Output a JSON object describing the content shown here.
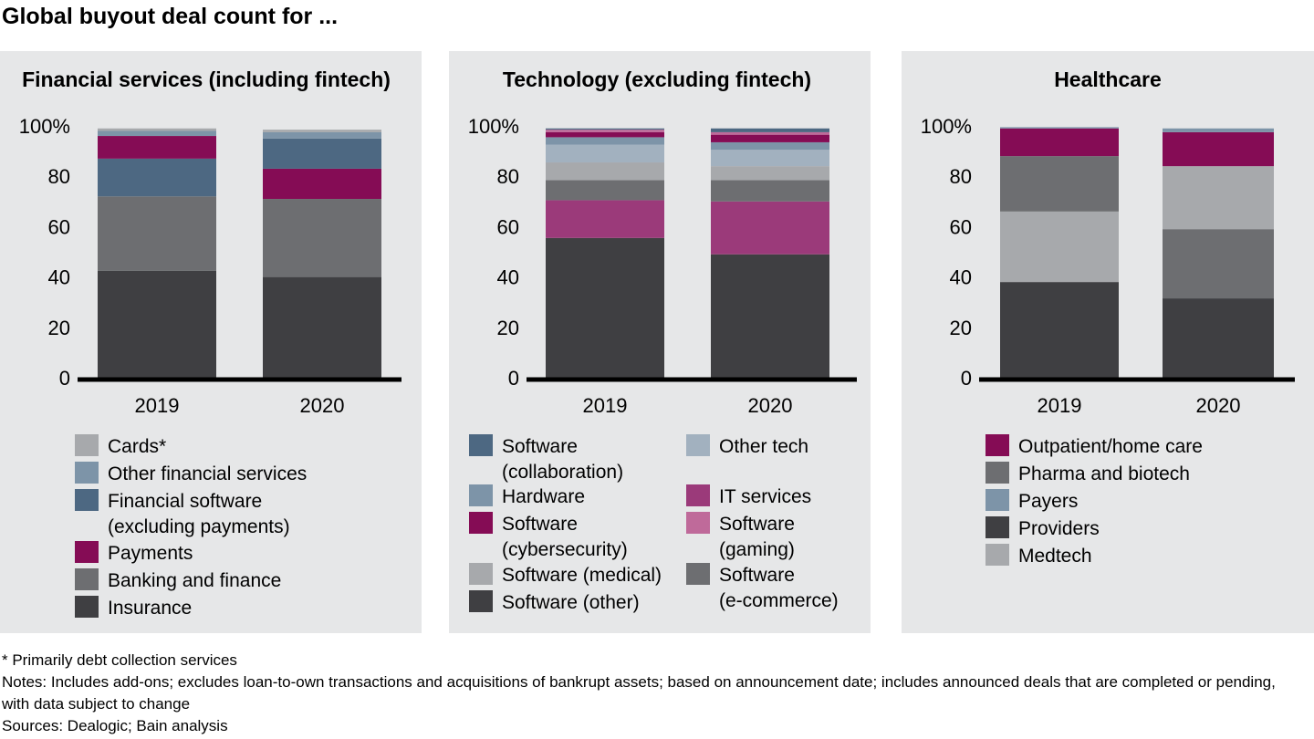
{
  "title": "Global buyout deal count for ...",
  "footnote": "* Primarily debt collection services",
  "notes": "Notes: Includes add-ons; excludes loan-to-own transactions and acquisitions of bankrupt assets; based on announcement date; includes announced deals that are completed or pending, with data subject to change",
  "sources": "Sources: Dealogic; Bain analysis",
  "chart_data": [
    {
      "type": "bar",
      "stacked": true,
      "title": "Financial services (including fintech)",
      "categories": [
        "2019",
        "2020"
      ],
      "y_ticks": [
        "0",
        "20",
        "40",
        "60",
        "80",
        "100%"
      ],
      "ylim": [
        0,
        100
      ],
      "series": [
        {
          "name": "Insurance",
          "color": "#3f3f42",
          "values": [
            42.5,
            40
          ]
        },
        {
          "name": "Banking and finance",
          "color": "#6d6e71",
          "values": [
            29.5,
            31
          ]
        },
        {
          "name": "Payments",
          "color": "#850c55",
          "values": [
            0,
            12
          ]
        },
        {
          "name": "Financial software (excluding payments)",
          "color": "#4d6882",
          "values": [
            15,
            12
          ]
        },
        {
          "name": "Payments",
          "color": "#850c55",
          "values": [
            9,
            0
          ]
        },
        {
          "name": "Other financial services",
          "color": "#7d94a8",
          "values": [
            2,
            2.5
          ]
        },
        {
          "name": "Cards*",
          "color": "#a7a9ac",
          "values": [
            1,
            1
          ]
        }
      ],
      "legend": [
        {
          "name": "Cards*",
          "color": "#a7a9ac"
        },
        {
          "name": "Other financial services",
          "color": "#7d94a8"
        },
        {
          "name": "Financial software\n(excluding payments)",
          "color": "#4d6882"
        },
        {
          "name": "Payments",
          "color": "#850c55"
        },
        {
          "name": "Banking and finance",
          "color": "#6d6e71"
        },
        {
          "name": "Insurance",
          "color": "#3f3f42"
        }
      ]
    },
    {
      "type": "bar",
      "stacked": true,
      "title": "Technology (excluding fintech)",
      "categories": [
        "2019",
        "2020"
      ],
      "y_ticks": [
        "0",
        "20",
        "40",
        "60",
        "80",
        "100%"
      ],
      "ylim": [
        0,
        100
      ],
      "series": [
        {
          "name": "Software (other)",
          "color": "#3f3f42",
          "values": [
            55.5,
            49
          ]
        },
        {
          "name": "IT services",
          "color": "#9b3a7a",
          "values": [
            15,
            21
          ]
        },
        {
          "name": "Software (e-commerce)",
          "color": "#6d6e71",
          "values": [
            8,
            8.5
          ]
        },
        {
          "name": "Software (medical)",
          "color": "#a7a9ac",
          "values": [
            7,
            5.5
          ]
        },
        {
          "name": "Other tech",
          "color": "#a2b1bf",
          "values": [
            7,
            6.5
          ]
        },
        {
          "name": "Hardware",
          "color": "#7d94a8",
          "values": [
            3,
            3
          ]
        },
        {
          "name": "Software (cybersecurity)",
          "color": "#850c55",
          "values": [
            2,
            3
          ]
        },
        {
          "name": "Software (gaming)",
          "color": "#bf6a9a",
          "values": [
            1,
            1
          ]
        },
        {
          "name": "Software (collaboration)",
          "color": "#4d6882",
          "values": [
            0.5,
            1.5
          ]
        }
      ],
      "legend": [
        {
          "name": "Software\n(collaboration)",
          "color": "#4d6882",
          "col": 0,
          "row": 0
        },
        {
          "name": "Hardware",
          "color": "#7d94a8",
          "col": 0,
          "row": 1
        },
        {
          "name": "Software\n(cybersecurity)",
          "color": "#850c55",
          "col": 0,
          "row": 2
        },
        {
          "name": "Software (medical)",
          "color": "#a7a9ac",
          "col": 0,
          "row": 3
        },
        {
          "name": "Software (other)",
          "color": "#3f3f42",
          "col": 0,
          "row": 4
        },
        {
          "name": "Other tech",
          "color": "#a2b1bf",
          "col": 1,
          "row": 0
        },
        {
          "name": "IT services",
          "color": "#9b3a7a",
          "col": 1,
          "row": 1
        },
        {
          "name": "Software\n(gaming)",
          "color": "#bf6a9a",
          "col": 1,
          "row": 2
        },
        {
          "name": "Software\n(e-commerce)",
          "color": "#6d6e71",
          "col": 1,
          "row": 3
        }
      ]
    },
    {
      "type": "bar",
      "stacked": true,
      "title": "Healthcare",
      "categories": [
        "2019",
        "2020"
      ],
      "y_ticks": [
        "0",
        "20",
        "40",
        "60",
        "80",
        "100%"
      ],
      "ylim": [
        0,
        100
      ],
      "series": [
        {
          "name": "Providers",
          "color": "#3f3f42",
          "values": [
            38,
            31.5
          ]
        },
        {
          "name": "Medtech",
          "color": "#a7a9ac",
          "values": [
            28,
            0
          ]
        },
        {
          "name": "Pharma and biotech",
          "color": "#6d6e71",
          "values": [
            22,
            27.5
          ]
        },
        {
          "name": "Medtech",
          "color": "#a7a9ac",
          "values": [
            0,
            25
          ]
        },
        {
          "name": "Outpatient/home care",
          "color": "#850c55",
          "values": [
            11,
            13.5
          ]
        },
        {
          "name": "Payers",
          "color": "#7d94a8",
          "values": [
            0.5,
            1.5
          ]
        }
      ],
      "legend": [
        {
          "name": "Outpatient/home care",
          "color": "#850c55"
        },
        {
          "name": "Pharma and biotech",
          "color": "#6d6e71"
        },
        {
          "name": "Payers",
          "color": "#7d94a8"
        },
        {
          "name": "Providers",
          "color": "#3f3f42"
        },
        {
          "name": "Medtech",
          "color": "#a7a9ac"
        }
      ]
    }
  ]
}
